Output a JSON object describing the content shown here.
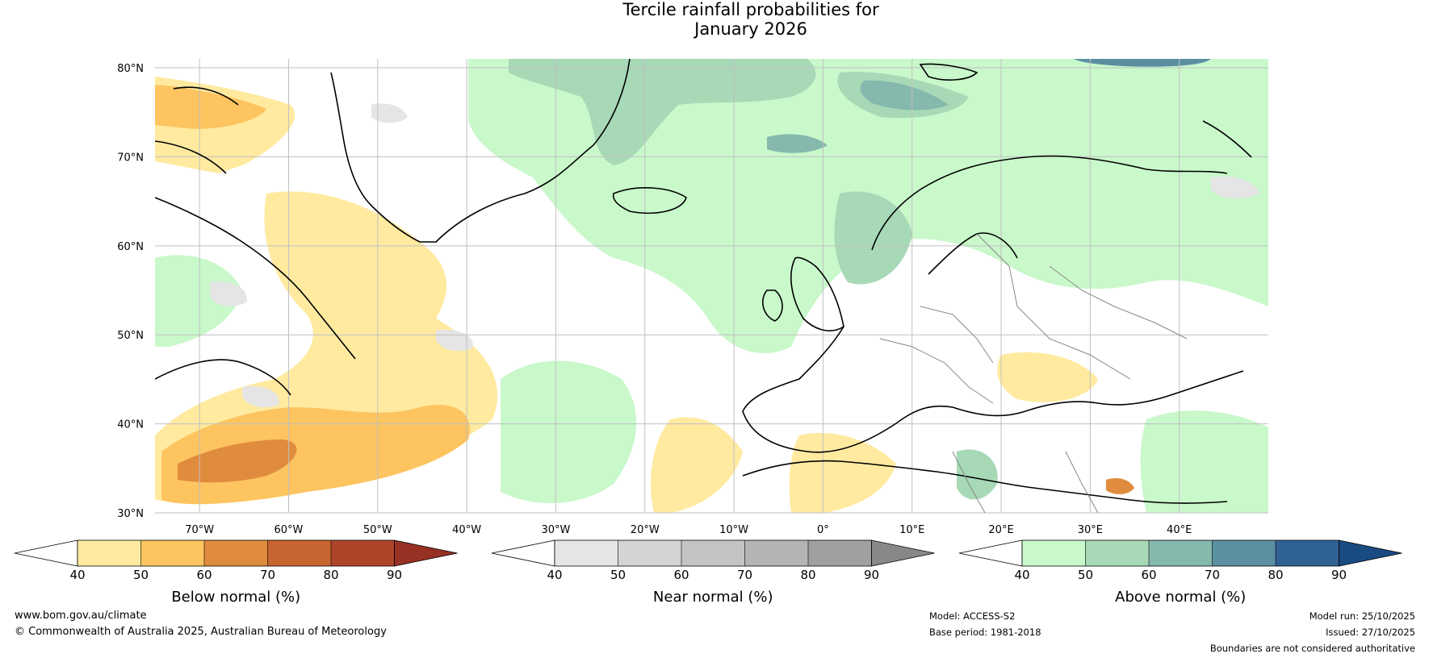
{
  "title": {
    "line1": "Tercile rainfall probabilities for",
    "line2": "January 2026"
  },
  "map": {
    "lat_labels": [
      "80°N",
      "70°N",
      "60°N",
      "50°N",
      "40°N",
      "30°N"
    ],
    "lon_labels": [
      "70°W",
      "60°W",
      "50°W",
      "40°W",
      "30°W",
      "20°W",
      "10°W",
      "0°",
      "10°E",
      "20°E",
      "30°E",
      "40°E"
    ],
    "extent": {
      "lon_min": -75,
      "lon_max": 50,
      "lat_min": 30,
      "lat_max": 81
    }
  },
  "legends": [
    {
      "name": "below",
      "title": "Below normal (%)",
      "ticks": [
        "40",
        "50",
        "60",
        "70",
        "80",
        "90"
      ],
      "colors": [
        "#ffffff",
        "#ffeaa0",
        "#fdc45f",
        "#e08c3e",
        "#c96530",
        "#ae452a",
        "#973123"
      ]
    },
    {
      "name": "near",
      "title": "Near normal (%)",
      "ticks": [
        "40",
        "50",
        "60",
        "70",
        "80",
        "90"
      ],
      "colors": [
        "#ffffff",
        "#e5e5e5",
        "#d4d4d4",
        "#c4c4c4",
        "#b4b4b4",
        "#a0a0a0",
        "#888888"
      ]
    },
    {
      "name": "above",
      "title": "Above normal (%)",
      "ticks": [
        "40",
        "50",
        "60",
        "70",
        "80",
        "90"
      ],
      "colors": [
        "#ffffff",
        "#c9f8cb",
        "#a7d9b7",
        "#85b9ad",
        "#5b90a2",
        "#306194",
        "#1a4a82"
      ]
    }
  ],
  "footer": {
    "website": "www.bom.gov.au/climate",
    "copyright": "© Commonwealth of Australia 2025, Australian Bureau of Meteorology",
    "model": "Model: ACCESS-S2",
    "base_period": "Base period: 1981-2018",
    "model_run": "Model run: 25/10/2025",
    "issued": "Issued: 27/10/2025",
    "disclaimer": "Boundaries are not considered authoritative"
  }
}
